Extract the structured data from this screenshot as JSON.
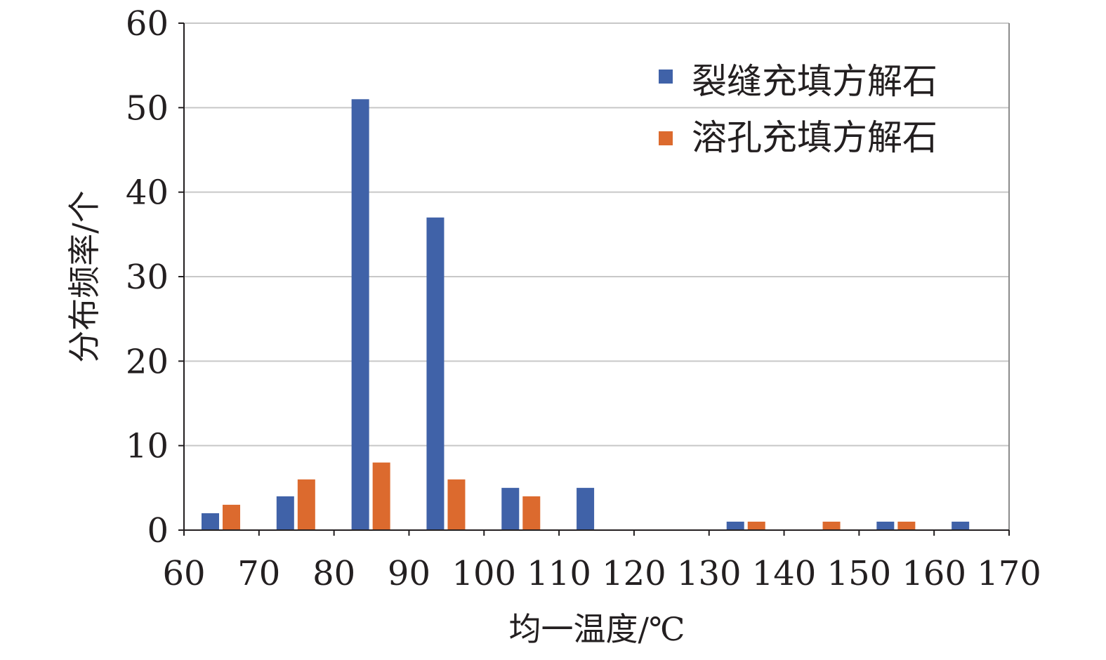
{
  "chart_data": {
    "type": "bar",
    "title": "",
    "xlabel": "均一温度/℃",
    "ylabel": "分布频率/个",
    "xlim": [
      60,
      170
    ],
    "ylim": [
      0,
      60
    ],
    "x_ticks": [
      "60",
      "70",
      "80",
      "90",
      "100",
      "110",
      "120",
      "130",
      "140",
      "150",
      "160",
      "170"
    ],
    "y_ticks": [
      "0",
      "10",
      "20",
      "30",
      "40",
      "50",
      "60"
    ],
    "grid": true,
    "legend_position": "top-right",
    "bins": [
      [
        60,
        70
      ],
      [
        70,
        80
      ],
      [
        80,
        90
      ],
      [
        90,
        100
      ],
      [
        100,
        110
      ],
      [
        110,
        120
      ],
      [
        120,
        130
      ],
      [
        130,
        140
      ],
      [
        140,
        150
      ],
      [
        150,
        160
      ],
      [
        160,
        170
      ]
    ],
    "series": [
      {
        "name": "裂缝充填方解石",
        "color": "#4062a8",
        "values": [
          2,
          4,
          51,
          37,
          5,
          5,
          0,
          1,
          0,
          1,
          1
        ]
      },
      {
        "name": "溶孔充填方解石",
        "color": "#dc6a2e",
        "values": [
          3,
          6,
          8,
          6,
          4,
          0,
          0,
          1,
          1,
          1,
          0
        ]
      }
    ]
  }
}
